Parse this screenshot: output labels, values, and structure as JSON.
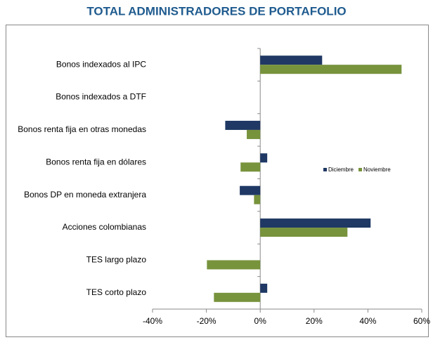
{
  "chart_data": {
    "type": "barh",
    "title": "TOTAL ADMINISTRADORES DE PORTAFOLIO",
    "categories": [
      "Bonos indexados al IPC",
      "Bonos indexados a DTF",
      "Bonos renta fija en otras monedas",
      "Bonos renta fija en dólares",
      "Bonos DP en moneda extranjera",
      "Acciones colombianas",
      "TES largo plazo",
      "TES corto plazo"
    ],
    "series": [
      {
        "name": "Diciembre",
        "color": "#1f3864",
        "values": [
          23,
          0,
          -13,
          2.6,
          -7.6,
          41,
          0,
          2.6
        ]
      },
      {
        "name": "Noviembre",
        "color": "#77933c",
        "values": [
          52.5,
          0,
          -5,
          -7.3,
          -2.3,
          32.4,
          -19.8,
          -17.2
        ]
      }
    ],
    "xlim": [
      -40,
      60
    ],
    "xticks": [
      {
        "value": -40,
        "label": "-40%"
      },
      {
        "value": -20,
        "label": "-20%"
      },
      {
        "value": 0,
        "label": "0%"
      },
      {
        "value": 20,
        "label": "20%"
      },
      {
        "value": 40,
        "label": "40%"
      },
      {
        "value": 60,
        "label": "60%"
      }
    ],
    "legend": "right"
  }
}
